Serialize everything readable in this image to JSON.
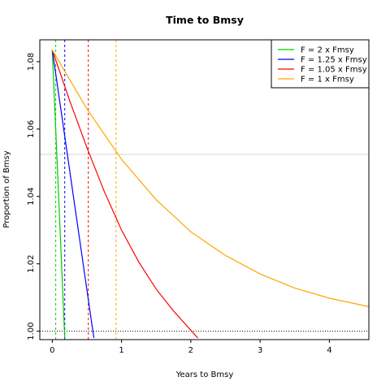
{
  "chart_data": {
    "type": "line",
    "title": "Time to Bmsy",
    "xlabel": "Years to Bmsy",
    "ylabel": "Proportion of Bmsy",
    "xlim": [
      -0.18,
      4.57
    ],
    "ylim": [
      0.9975,
      1.0865
    ],
    "x_ticks": [
      0,
      1,
      2,
      3,
      4
    ],
    "y_ticks": [
      1.0,
      1.02,
      1.04,
      1.06,
      1.08
    ],
    "y_tick_labels": [
      "1.00",
      "1.02",
      "1.04",
      "1.06",
      "1.08"
    ],
    "grid": false,
    "legend_position": "top-right",
    "reference_lines": {
      "horizontal_solid_gray": 1.0525,
      "horizontal_dotted_black": 1.0
    },
    "series": [
      {
        "name": "F = 2 x Fmsy",
        "color": "#00cc00",
        "x": [
          0,
          0.18
        ],
        "y": [
          1.0835,
          0.998
        ],
        "marker_x": 0.05
      },
      {
        "name": "F = 1.25 x Fmsy",
        "color": "#0000ff",
        "x": [
          0,
          0.6
        ],
        "y": [
          1.0835,
          0.998
        ],
        "marker_x": 0.18
      },
      {
        "name": "F = 1.05 x Fmsy",
        "color": "#ff0000",
        "x": [
          0,
          0.25,
          0.5,
          0.75,
          1.0,
          1.25,
          1.5,
          1.75,
          2.1
        ],
        "y": [
          1.0835,
          1.0685,
          1.0545,
          1.0415,
          1.03,
          1.0205,
          1.0125,
          1.006,
          0.998
        ],
        "marker_x": 0.52
      },
      {
        "name": "F = 1 x Fmsy",
        "color": "#ffa500",
        "x": [
          0,
          0.5,
          1.0,
          1.5,
          2.0,
          2.5,
          3.0,
          3.5,
          4.0,
          4.57
        ],
        "y": [
          1.0835,
          1.066,
          1.051,
          1.039,
          1.0295,
          1.0225,
          1.017,
          1.0128,
          1.0098,
          1.0073
        ],
        "marker_x": 0.92
      }
    ]
  }
}
